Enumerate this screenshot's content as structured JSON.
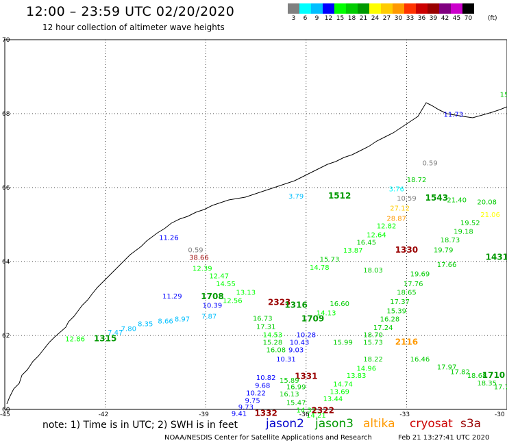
{
  "header": {
    "title": "12:00 – 23:59 UTC 02/20/2020",
    "subtitle": "12 hour collection of altimeter wave heights"
  },
  "colorbar": {
    "colors": [
      "#808080",
      "#00ffff",
      "#00bfff",
      "#0000ff",
      "#00ff00",
      "#00cc00",
      "#009900",
      "#ffff00",
      "#ffcc00",
      "#ff9900",
      "#ff3300",
      "#cc0000",
      "#990000",
      "#800080",
      "#cc00cc",
      "#000000"
    ],
    "labels": [
      "3",
      "6",
      "9",
      "12",
      "15",
      "18",
      "21",
      "24",
      "27",
      "30",
      "33",
      "36",
      "39",
      "42",
      "45",
      "70"
    ],
    "unit": "(ft)"
  },
  "axes": {
    "lat_labels": [
      "70",
      "68",
      "66",
      "64",
      "62",
      "60"
    ],
    "lon_labels": [
      "-45",
      "-42",
      "-39",
      "-36",
      "-33",
      "-30"
    ]
  },
  "note": "note: 1) Time is in UTC; 2) SWH is in feet",
  "satellites": [
    {
      "name": "jason2",
      "color": "#0000cc"
    },
    {
      "name": "jason3",
      "color": "#009900"
    },
    {
      "name": "altika",
      "color": "#ff9900"
    },
    {
      "name": "cryosat",
      "color": "#cc0000"
    },
    {
      "name": "s3a",
      "color": "#990000"
    }
  ],
  "footer": {
    "left": "NOAA/NESDIS Center for Satellite Applications and Research",
    "right": "Feb 21 13:27:41 UTC 2020"
  },
  "wave_labels": [
    {
      "t": "15",
      "lon": -30.0,
      "lat": 68.45,
      "c": "#00cc00"
    },
    {
      "t": "11.73",
      "lon": -31.6,
      "lat": 67.92,
      "c": "#0000ff"
    },
    {
      "t": "0.59",
      "lon": -32.3,
      "lat": 66.6,
      "c": "#808080"
    },
    {
      "t": "18.72",
      "lon": -32.7,
      "lat": 66.15,
      "c": "#00cc00"
    },
    {
      "t": "3.76",
      "lon": -33.3,
      "lat": 65.9,
      "c": "#00ffff"
    },
    {
      "t": "1512",
      "lon": -35.0,
      "lat": 65.7,
      "c": "#009900",
      "time": true
    },
    {
      "t": "3.79",
      "lon": -36.3,
      "lat": 65.7,
      "c": "#00bfff"
    },
    {
      "t": "1543",
      "lon": -32.1,
      "lat": 65.65,
      "c": "#009900",
      "time": true
    },
    {
      "t": "10.59",
      "lon": -33.0,
      "lat": 65.65,
      "c": "#808080"
    },
    {
      "t": "21.40",
      "lon": -31.5,
      "lat": 65.6,
      "c": "#00cc00"
    },
    {
      "t": "20.08",
      "lon": -30.6,
      "lat": 65.55,
      "c": "#00cc00"
    },
    {
      "t": "27.12",
      "lon": -33.2,
      "lat": 65.38,
      "c": "#ffcc00"
    },
    {
      "t": "21.06",
      "lon": -30.5,
      "lat": 65.2,
      "c": "#ffff00"
    },
    {
      "t": "28.87",
      "lon": -33.3,
      "lat": 65.1,
      "c": "#ff9900"
    },
    {
      "t": "19.52",
      "lon": -31.1,
      "lat": 64.98,
      "c": "#00cc00"
    },
    {
      "t": "12.82",
      "lon": -33.6,
      "lat": 64.9,
      "c": "#00ff00"
    },
    {
      "t": "19.18",
      "lon": -31.3,
      "lat": 64.75,
      "c": "#00cc00"
    },
    {
      "t": "12.64",
      "lon": -33.9,
      "lat": 64.66,
      "c": "#00ff00"
    },
    {
      "t": "18.73",
      "lon": -31.7,
      "lat": 64.52,
      "c": "#00cc00"
    },
    {
      "t": "16.45",
      "lon": -34.2,
      "lat": 64.45,
      "c": "#00cc00"
    },
    {
      "t": "1330",
      "lon": -33.0,
      "lat": 64.24,
      "c": "#990000",
      "time": true
    },
    {
      "t": "19.79",
      "lon": -31.9,
      "lat": 64.25,
      "c": "#00cc00"
    },
    {
      "t": "13.87",
      "lon": -34.6,
      "lat": 64.24,
      "c": "#00ff00"
    },
    {
      "t": "1431",
      "lon": -30.3,
      "lat": 64.05,
      "c": "#009900",
      "time": true
    },
    {
      "t": "15.73",
      "lon": -35.3,
      "lat": 64.0,
      "c": "#00cc00"
    },
    {
      "t": "17.66",
      "lon": -31.8,
      "lat": 63.85,
      "c": "#00cc00"
    },
    {
      "t": "14.78",
      "lon": -35.6,
      "lat": 63.78,
      "c": "#00ff00"
    },
    {
      "t": "18.03",
      "lon": -34.0,
      "lat": 63.7,
      "c": "#00cc00"
    },
    {
      "t": "19.69",
      "lon": -32.6,
      "lat": 63.6,
      "c": "#00cc00"
    },
    {
      "t": "12.39",
      "lon": -39.1,
      "lat": 63.75,
      "c": "#00ff00"
    },
    {
      "t": "38.66",
      "lon": -39.2,
      "lat": 64.05,
      "c": "#990000"
    },
    {
      "t": "0.59",
      "lon": -39.3,
      "lat": 64.25,
      "c": "#808080"
    },
    {
      "t": "11.26",
      "lon": -40.1,
      "lat": 64.58,
      "c": "#0000ff"
    },
    {
      "t": "12.47",
      "lon": -38.6,
      "lat": 63.55,
      "c": "#00ff00"
    },
    {
      "t": "14.55",
      "lon": -38.4,
      "lat": 63.33,
      "c": "#00ff00"
    },
    {
      "t": "17.76",
      "lon": -32.8,
      "lat": 63.33,
      "c": "#00cc00"
    },
    {
      "t": "13.13",
      "lon": -37.8,
      "lat": 63.1,
      "c": "#00ff00"
    },
    {
      "t": "18.65",
      "lon": -33.0,
      "lat": 63.1,
      "c": "#00cc00"
    },
    {
      "t": "11.29",
      "lon": -40.0,
      "lat": 63.0,
      "c": "#0000ff"
    },
    {
      "t": "1708",
      "lon": -38.8,
      "lat": 62.98,
      "c": "#009900",
      "time": true
    },
    {
      "t": "12.56",
      "lon": -38.2,
      "lat": 62.88,
      "c": "#00ff00"
    },
    {
      "t": "2323",
      "lon": -36.8,
      "lat": 62.82,
      "c": "#990000",
      "time": true
    },
    {
      "t": "1316",
      "lon": -36.3,
      "lat": 62.75,
      "c": "#009900",
      "time": true
    },
    {
      "t": "17.37",
      "lon": -33.2,
      "lat": 62.85,
      "c": "#00cc00"
    },
    {
      "t": "16.60",
      "lon": -35.0,
      "lat": 62.8,
      "c": "#00cc00"
    },
    {
      "t": "10.39",
      "lon": -38.8,
      "lat": 62.75,
      "c": "#0000ff"
    },
    {
      "t": "15.39",
      "lon": -33.3,
      "lat": 62.6,
      "c": "#00cc00"
    },
    {
      "t": "14.13",
      "lon": -35.4,
      "lat": 62.55,
      "c": "#00ff00"
    },
    {
      "t": "7.87",
      "lon": -38.9,
      "lat": 62.45,
      "c": "#00bfff"
    },
    {
      "t": "8.97",
      "lon": -39.7,
      "lat": 62.38,
      "c": "#00bfff"
    },
    {
      "t": "16.73",
      "lon": -37.3,
      "lat": 62.4,
      "c": "#00cc00"
    },
    {
      "t": "1709",
      "lon": -35.8,
      "lat": 62.38,
      "c": "#009900",
      "time": true
    },
    {
      "t": "16.28",
      "lon": -33.5,
      "lat": 62.38,
      "c": "#00cc00"
    },
    {
      "t": "8.66",
      "lon": -40.2,
      "lat": 62.32,
      "c": "#00bfff"
    },
    {
      "t": "8.35",
      "lon": -40.8,
      "lat": 62.25,
      "c": "#00bfff"
    },
    {
      "t": "17.31",
      "lon": -37.2,
      "lat": 62.18,
      "c": "#00cc00"
    },
    {
      "t": "17.24",
      "lon": -33.7,
      "lat": 62.15,
      "c": "#00cc00"
    },
    {
      "t": "7.80",
      "lon": -41.3,
      "lat": 62.12,
      "c": "#00bfff"
    },
    {
      "t": "7.47",
      "lon": -41.7,
      "lat": 62.02,
      "c": "#00bfff"
    },
    {
      "t": "14.53",
      "lon": -37.0,
      "lat": 61.95,
      "c": "#00ff00"
    },
    {
      "t": "10.28",
      "lon": -36.0,
      "lat": 61.95,
      "c": "#0000ff"
    },
    {
      "t": "18.70",
      "lon": -34.0,
      "lat": 61.95,
      "c": "#00cc00"
    },
    {
      "t": "12.86",
      "lon": -42.9,
      "lat": 61.84,
      "c": "#00ff00"
    },
    {
      "t": "1315",
      "lon": -42.0,
      "lat": 61.84,
      "c": "#009900",
      "time": true
    },
    {
      "t": "15.28",
      "lon": -37.0,
      "lat": 61.75,
      "c": "#00cc00"
    },
    {
      "t": "10.43",
      "lon": -36.2,
      "lat": 61.75,
      "c": "#0000ff"
    },
    {
      "t": "15.73",
      "lon": -34.0,
      "lat": 61.75,
      "c": "#00cc00"
    },
    {
      "t": "2116",
      "lon": -33.0,
      "lat": 61.75,
      "c": "#ff9900",
      "time": true
    },
    {
      "t": "15.99",
      "lon": -34.9,
      "lat": 61.75,
      "c": "#00cc00"
    },
    {
      "t": "16.08",
      "lon": -36.9,
      "lat": 61.55,
      "c": "#00cc00"
    },
    {
      "t": "9.03",
      "lon": -36.3,
      "lat": 61.55,
      "c": "#0000ff"
    },
    {
      "t": "18.22",
      "lon": -34.0,
      "lat": 61.3,
      "c": "#00cc00"
    },
    {
      "t": "10.31",
      "lon": -36.6,
      "lat": 61.3,
      "c": "#0000ff"
    },
    {
      "t": "14.96",
      "lon": -34.2,
      "lat": 61.05,
      "c": "#00ff00"
    },
    {
      "t": "16.46",
      "lon": -32.6,
      "lat": 61.3,
      "c": "#00cc00"
    },
    {
      "t": "17.97",
      "lon": -31.8,
      "lat": 61.08,
      "c": "#00cc00"
    },
    {
      "t": "17.82",
      "lon": -31.4,
      "lat": 60.95,
      "c": "#00cc00"
    },
    {
      "t": "1331",
      "lon": -36.0,
      "lat": 60.82,
      "c": "#990000",
      "time": true
    },
    {
      "t": "18.68",
      "lon": -30.9,
      "lat": 60.85,
      "c": "#00cc00"
    },
    {
      "t": "1710",
      "lon": -30.4,
      "lat": 60.85,
      "c": "#009900",
      "time": true
    },
    {
      "t": "13.83",
      "lon": -34.5,
      "lat": 60.85,
      "c": "#00ff00"
    },
    {
      "t": "10.82",
      "lon": -37.2,
      "lat": 60.8,
      "c": "#0000ff"
    },
    {
      "t": "15.89",
      "lon": -36.5,
      "lat": 60.72,
      "c": "#00cc00"
    },
    {
      "t": "18.35",
      "lon": -30.6,
      "lat": 60.65,
      "c": "#00cc00"
    },
    {
      "t": "14.74",
      "lon": -34.9,
      "lat": 60.62,
      "c": "#00ff00"
    },
    {
      "t": "9.68",
      "lon": -37.3,
      "lat": 60.58,
      "c": "#0000ff"
    },
    {
      "t": "16.99",
      "lon": -36.3,
      "lat": 60.55,
      "c": "#00cc00"
    },
    {
      "t": "17.70",
      "lon": -30.1,
      "lat": 60.55,
      "c": "#00cc00"
    },
    {
      "t": "13.69",
      "lon": -35.0,
      "lat": 60.42,
      "c": "#00ff00"
    },
    {
      "t": "10.22",
      "lon": -37.5,
      "lat": 60.38,
      "c": "#0000ff"
    },
    {
      "t": "16.13",
      "lon": -36.5,
      "lat": 60.35,
      "c": "#00cc00"
    },
    {
      "t": "13.44",
      "lon": -35.2,
      "lat": 60.22,
      "c": "#00ff00"
    },
    {
      "t": "9.75",
      "lon": -37.6,
      "lat": 60.18,
      "c": "#0000ff"
    },
    {
      "t": "15.47",
      "lon": -36.3,
      "lat": 60.12,
      "c": "#00cc00"
    },
    {
      "t": "9.73",
      "lon": -37.8,
      "lat": 60.0,
      "c": "#0000ff"
    },
    {
      "t": "14.31",
      "lon": -36.0,
      "lat": 59.92,
      "c": "#00ff00"
    },
    {
      "t": "2322",
      "lon": -35.5,
      "lat": 59.9,
      "c": "#990000",
      "time": true
    },
    {
      "t": "9.41",
      "lon": -38.0,
      "lat": 59.82,
      "c": "#0000ff"
    },
    {
      "t": "1332",
      "lon": -37.2,
      "lat": 59.82,
      "c": "#990000",
      "time": true
    },
    {
      "t": "14.21",
      "lon": -35.7,
      "lat": 59.78,
      "c": "#00ff00"
    }
  ]
}
